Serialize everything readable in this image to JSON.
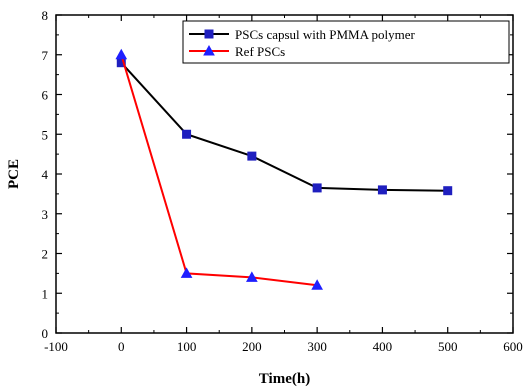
{
  "chart_data": {
    "type": "line",
    "title": "",
    "xlabel": "Time(h)",
    "ylabel": "PCE",
    "xlim": [
      -100,
      600
    ],
    "ylim": [
      0,
      8
    ],
    "xticks": [
      -100,
      0,
      100,
      200,
      300,
      400,
      500,
      600
    ],
    "yticks": [
      0,
      1,
      2,
      3,
      4,
      5,
      6,
      7,
      8
    ],
    "grid": false,
    "legend_position": "top-right",
    "series": [
      {
        "name": "PSCs capsul with PMMA polymer",
        "color": "#000000",
        "marker": "square",
        "marker_color": "#1f1fbf",
        "x": [
          0,
          100,
          200,
          300,
          400,
          500
        ],
        "y": [
          6.8,
          5.0,
          4.45,
          3.65,
          3.6,
          3.58
        ]
      },
      {
        "name": "Ref PSCs",
        "color": "#ff0000",
        "marker": "triangle",
        "marker_color": "#1f1fff",
        "x": [
          0,
          100,
          200,
          300
        ],
        "y": [
          7.0,
          1.5,
          1.4,
          1.2
        ]
      }
    ]
  }
}
